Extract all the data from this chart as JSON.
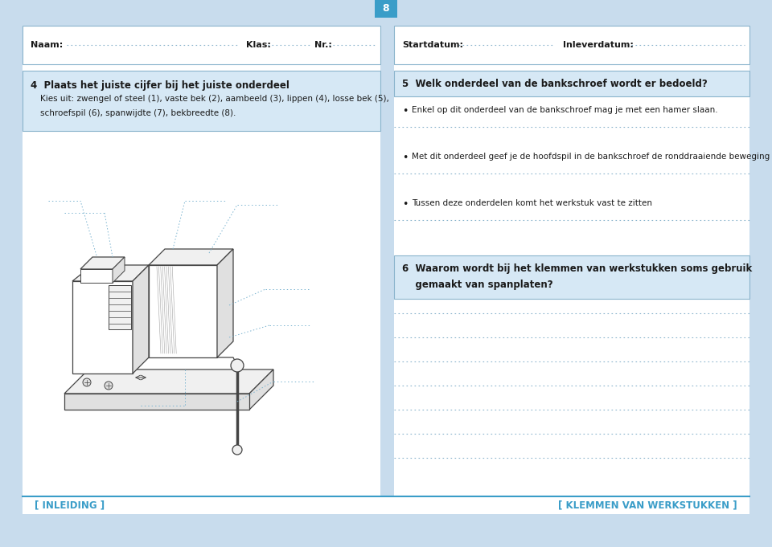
{
  "bg_color": "#c8dced",
  "white": "#ffffff",
  "header_bg": "#d6e8f5",
  "border_color": "#8ab4cc",
  "text_dark": "#1a1a1a",
  "dotted_color": "#8ab4cc",
  "page_number": "8",
  "top_bar_color": "#3a9dc8",
  "naam_label": "Naam:",
  "klas_label": "Klas:",
  "nr_label": "Nr.:",
  "startdatum_label": "Startdatum:",
  "inleverdatum_label": "Inleverdatum:",
  "q4_title": "4  Plaats het juiste cijfer bij het juiste onderdeel",
  "q4_body_line1": "Kies uit: zwengel of steel (1), vaste bek (2), aambeeld (3), lippen (4), losse bek (5),",
  "q4_body_line2": "schroefspil (6), spanwijdte (7), bekbreedte (8).",
  "q5_title": "5  Welk onderdeel van de bankschroef wordt er bedoeld?",
  "q5_bullets": [
    "Enkel op dit onderdeel van de bankschroef mag je met een hamer slaan.",
    "Met dit onderdeel geef je de hoofdspil in de bankschroef de ronddraaiende beweging",
    "Tussen deze onderdelen komt het werkstuk vast te zitten"
  ],
  "q6_title_line1": "6  Waarom wordt bij het klemmen van werkstukken soms gebruik",
  "q6_title_line2": "    gemaakt van spanplaten?",
  "footer_left": "[ INLEIDING ]",
  "footer_right": "[ KLEMMEN VAN WERKSTUKKEN ]",
  "vise_line_color": "#444444",
  "pointer_color": "#7ab3d0"
}
